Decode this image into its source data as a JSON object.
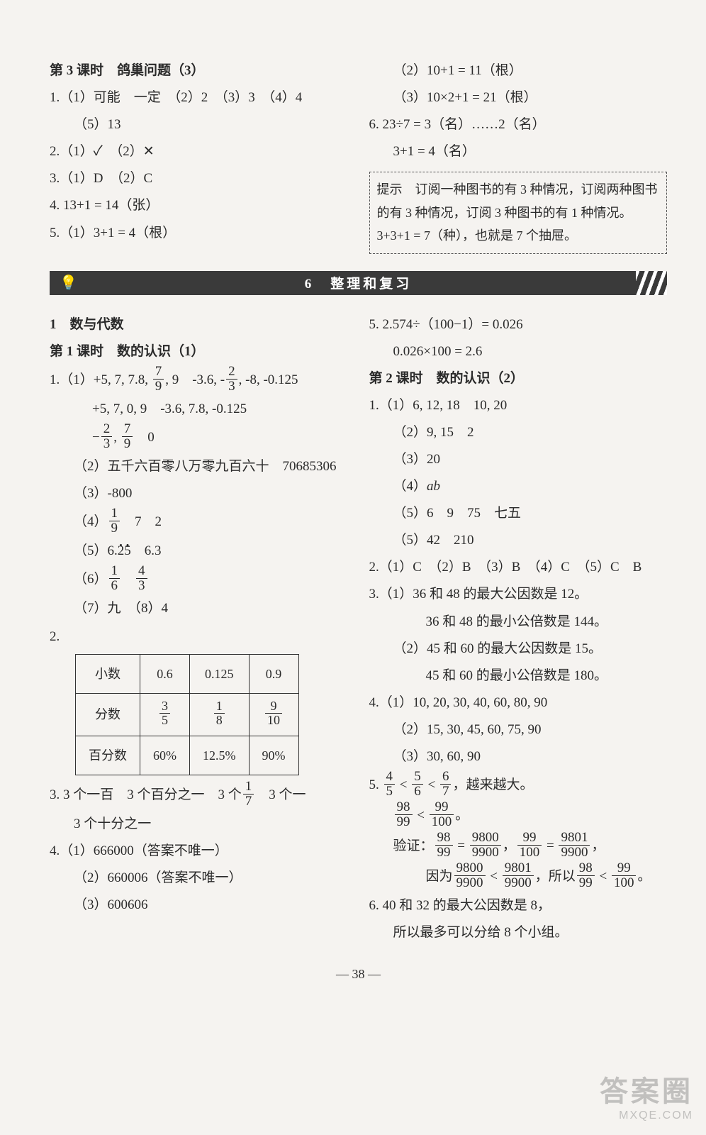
{
  "top": {
    "left": {
      "lesson_title": "第 3 课时　鸽巢问题（3）",
      "q1": "1.（1）可能　一定　（2）2　（3）3　（4）4",
      "q1c": "（5）13",
      "q2": "2.（1）✓　（2）✕",
      "q3": "3.（1）D　（2）C",
      "q4": "4. 13+1 = 14（张）",
      "q5": "5.（1）3+1 = 4（根）"
    },
    "right": {
      "l1": "（2）10+1 = 11（根）",
      "l2": "（3）10×2+1 = 21（根）",
      "l3": "6. 23÷7 = 3（名）……2（名）",
      "l4": "3+1 = 4（名）",
      "hint": "提示　订阅一种图书的有 3 种情况，订阅两种图书的有 3 种情况，订阅 3 种图书的有 1 种情况。3+3+1 = 7（种），也就是 7 个抽屉。"
    }
  },
  "banner": {
    "text": "6　整理和复习"
  },
  "bottom": {
    "left": {
      "h1": "1　数与代数",
      "h2": "第 1 课时　数的认识（1）",
      "q1a_pref": "1.（1）+5, 7, 7.8, ",
      "q1a_mid": ", 9　-3.6, -",
      "q1a_suf": ", -8, -0.125",
      "q1a2": "+5, 7, 0, 9　-3.6, 7.8, -0.125",
      "q1a3_mid": ", ",
      "q1a3_end": "　0",
      "q1_2": "（2）五千六百零八万零九百六十　70685306",
      "q1_3": "（3）-800",
      "q1_4_pref": "（4）",
      "q1_4_suf": "　7　2",
      "q1_5_pref": "（5）6.",
      "q1_5_suf": "　6.3",
      "q1_6_pref": "（6）",
      "q1_6_sep": "　",
      "q1_7": "（7）九　（8）4",
      "q2": "2.",
      "table": {
        "rows": [
          [
            "小数",
            "0.6",
            "0.125",
            "0.9"
          ],
          [
            "分数",
            {
              "n": "3",
              "d": "5"
            },
            {
              "n": "1",
              "d": "8"
            },
            {
              "n": "9",
              "d": "10"
            }
          ],
          [
            "百分数",
            "60%",
            "12.5%",
            "90%"
          ]
        ]
      },
      "q3a": "3. 3 个一百　3 个百分之一　3 个",
      "q3a_end": "　3 个一",
      "q3b": "3 个十分之一",
      "q4_1": "4.（1）666000（答案不唯一）",
      "q4_2": "（2）660006（答案不唯一）",
      "q4_3": "（3）600606"
    },
    "right": {
      "q5a": "5. 2.574÷（100−1）= 0.026",
      "q5b": "0.026×100 = 2.6",
      "h2": "第 2 课时　数的认识（2）",
      "q1_1": "1.（1）6, 12, 18　10, 20",
      "q1_2": "（2）9, 15　2",
      "q1_3": "（3）20",
      "q1_4": "（4）ab",
      "q1_5": "（5）6　9　75　七五",
      "q1_5b": "（5）42　210",
      "q2": "2.（1）C　（2）B　（3）B　（4）C　（5）C　B",
      "q3_1": "3.（1）36 和 48 的最大公因数是 12。",
      "q3_1b": "36 和 48 的最小公倍数是 144。",
      "q3_2": "（2）45 和 60 的最大公因数是 15。",
      "q3_2b": "45 和 60 的最小公倍数是 180。",
      "q4_1": "4.（1）10, 20, 30, 40, 60, 80, 90",
      "q4_2": "（2）15, 30, 45, 60, 75, 90",
      "q4_3": "（3）30, 60, 90",
      "q5_pref": "5. ",
      "q5_suf": "，越来越大。",
      "q5c_pref": "验证：",
      "q5d_pref": "因为",
      "q5d_mid": "，所以",
      "q5d_suf": "。",
      "q6a": "6. 40 和 32 的最大公因数是 8，",
      "q6b": "所以最多可以分给 8 个小组。"
    }
  },
  "footer": "— 38 —",
  "watermark": {
    "l1": "答案圈",
    "l2": "MXQE.COM"
  }
}
